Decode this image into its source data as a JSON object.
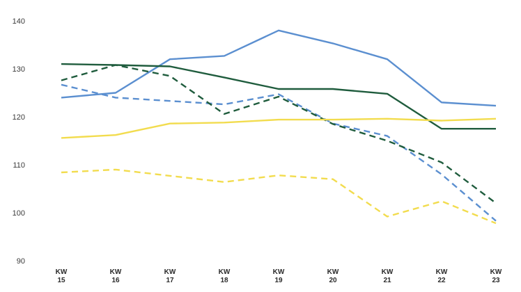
{
  "chart_data": {
    "type": "line",
    "categories": [
      "KW 15",
      "KW 16",
      "KW 17",
      "KW 18",
      "KW 19",
      "KW 20",
      "KW 21",
      "KW 22",
      "KW 23"
    ],
    "x_tick_lines": [
      [
        "KW",
        "15"
      ],
      [
        "KW",
        "16"
      ],
      [
        "KW",
        "17"
      ],
      [
        "KW",
        "18"
      ],
      [
        "KW",
        "19"
      ],
      [
        "KW",
        "20"
      ],
      [
        "KW",
        "21"
      ],
      [
        "KW",
        "22"
      ],
      [
        "KW",
        "23"
      ]
    ],
    "ylim": [
      90,
      140
    ],
    "yticks": [
      90,
      100,
      110,
      120,
      130,
      140
    ],
    "grid": false,
    "title": "",
    "xlabel": "",
    "ylabel": "",
    "series": [
      {
        "color": "#5B8FD0",
        "style": "solid",
        "values": [
          124,
          125,
          132,
          132.7,
          138,
          135.3,
          132,
          123,
          122.3
        ]
      },
      {
        "color": "#5B8FD0",
        "style": "dashed",
        "values": [
          126.7,
          124,
          123.3,
          122.6,
          124.7,
          118.6,
          116,
          108,
          98.3
        ]
      },
      {
        "color": "#1F5C3D",
        "style": "solid",
        "values": [
          131,
          130.8,
          130.5,
          128.2,
          125.8,
          125.8,
          124.8,
          117.5,
          117.5
        ]
      },
      {
        "color": "#1F5C3D",
        "style": "dashed",
        "values": [
          127.6,
          130.8,
          128.5,
          120.6,
          124.2,
          118.5,
          115,
          110.5,
          102
        ]
      },
      {
        "color": "#F2DC4E",
        "style": "solid",
        "values": [
          115.6,
          116.2,
          118.6,
          118.8,
          119.4,
          119.4,
          119.6,
          119.2,
          119.6
        ]
      },
      {
        "color": "#F2DC4E",
        "style": "dashed",
        "values": [
          108.4,
          109,
          107.7,
          106.4,
          107.8,
          107,
          99.2,
          102.4,
          97.8
        ]
      }
    ]
  }
}
